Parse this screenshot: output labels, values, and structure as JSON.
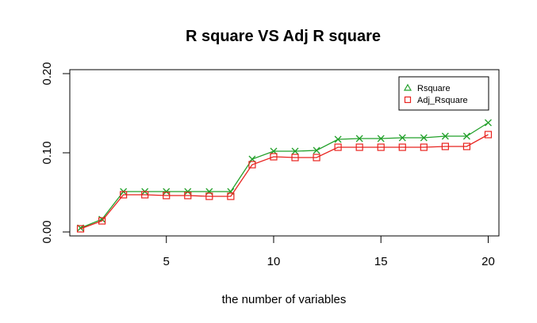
{
  "chart_data": {
    "type": "line",
    "title": "R square VS Adj R square",
    "xlabel": "the number of variables",
    "ylabel": "",
    "xlim": [
      0.5,
      20.5
    ],
    "ylim": [
      -0.005,
      0.205
    ],
    "x_ticks": [
      5,
      10,
      15,
      20
    ],
    "x_tick_labels": [
      "5",
      "10",
      "15",
      "20"
    ],
    "y_ticks": [
      0.0,
      0.1,
      0.2
    ],
    "y_tick_labels": [
      "0.00",
      "0.10",
      "0.20"
    ],
    "grid": false,
    "legend_position": "top-right",
    "x": [
      1,
      2,
      3,
      4,
      5,
      6,
      7,
      8,
      9,
      10,
      11,
      12,
      13,
      14,
      15,
      16,
      17,
      18,
      19,
      20
    ],
    "series": [
      {
        "name": "Rsquare",
        "color": "#22a02a",
        "marker": "cross",
        "legend_marker": "triangle",
        "values": [
          0.005,
          0.016,
          0.051,
          0.051,
          0.051,
          0.051,
          0.051,
          0.051,
          0.092,
          0.102,
          0.102,
          0.103,
          0.117,
          0.118,
          0.118,
          0.119,
          0.119,
          0.121,
          0.121,
          0.138
        ]
      },
      {
        "name": "Adj_Rsquare",
        "color": "#e8231f",
        "marker": "square",
        "legend_marker": "square",
        "values": [
          0.004,
          0.014,
          0.047,
          0.047,
          0.046,
          0.046,
          0.045,
          0.045,
          0.085,
          0.095,
          0.094,
          0.094,
          0.107,
          0.107,
          0.107,
          0.107,
          0.107,
          0.108,
          0.108,
          0.123
        ]
      }
    ]
  }
}
